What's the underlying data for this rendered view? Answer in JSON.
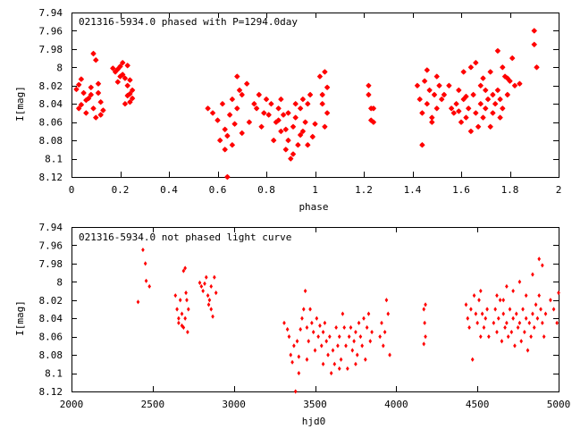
{
  "colors": {
    "points": "#ff0000",
    "axes": "#000000",
    "background": "#ffffff"
  },
  "chart_data": [
    {
      "type": "scatter",
      "title": "021316-5934.0 phased with P=1294.0day",
      "xlabel": "phase",
      "ylabel": "I[mag]",
      "xlim": [
        0,
        2
      ],
      "ylim": [
        8.12,
        7.94
      ],
      "y_inverted": true,
      "grid": false,
      "marker": "star",
      "xticks": [
        0,
        0.2,
        0.4,
        0.6,
        0.8,
        1,
        1.2,
        1.4,
        1.6,
        1.8,
        2
      ],
      "xtick_labels": [
        "0",
        "0.2",
        "0.4",
        "0.6",
        "0.8",
        "1",
        "1.2",
        "1.4",
        "1.6",
        "1.8",
        "2"
      ],
      "yticks": [
        7.94,
        7.96,
        7.98,
        8,
        8.02,
        8.04,
        8.06,
        8.08,
        8.1,
        8.12
      ],
      "ytick_labels": [
        "7.94",
        "7.96",
        "7.98",
        "8",
        "8.02",
        "8.04",
        "8.06",
        "8.08",
        "8.1",
        "8.12"
      ],
      "points": [
        [
          0.02,
          8.024
        ],
        [
          0.03,
          8.019
        ],
        [
          0.04,
          8.041
        ],
        [
          0.05,
          8.028
        ],
        [
          0.06,
          8.05
        ],
        [
          0.07,
          8.034
        ],
        [
          0.08,
          8.022
        ],
        [
          0.09,
          8.045
        ],
        [
          0.1,
          8.055
        ],
        [
          0.11,
          8.018
        ],
        [
          0.12,
          8.038
        ],
        [
          0.13,
          8.047
        ],
        [
          0.09,
          7.985
        ],
        [
          0.1,
          7.992
        ],
        [
          0.08,
          8.03
        ],
        [
          0.06,
          8.036
        ],
        [
          0.04,
          8.013
        ],
        [
          0.03,
          8.045
        ],
        [
          0.11,
          8.028
        ],
        [
          0.12,
          8.052
        ],
        [
          0.17,
          8.001
        ],
        [
          0.18,
          8.005
        ],
        [
          0.19,
          8.002
        ],
        [
          0.2,
          8.01
        ],
        [
          0.21,
          7.995
        ],
        [
          0.22,
          8.012
        ],
        [
          0.23,
          8.02
        ],
        [
          0.24,
          8.029
        ],
        [
          0.25,
          8.034
        ],
        [
          0.22,
          8.04
        ],
        [
          0.23,
          7.998
        ],
        [
          0.24,
          8.014
        ],
        [
          0.25,
          8.025
        ],
        [
          0.21,
          8.008
        ],
        [
          0.19,
          8.016
        ],
        [
          0.24,
          8.038
        ],
        [
          0.2,
          7.999
        ],
        [
          0.23,
          8.031
        ],
        [
          0.56,
          8.045
        ],
        [
          0.58,
          8.05
        ],
        [
          0.6,
          8.058
        ],
        [
          0.62,
          8.04
        ],
        [
          0.63,
          8.068
        ],
        [
          0.64,
          8.075
        ],
        [
          0.65,
          8.052
        ],
        [
          0.66,
          8.035
        ],
        [
          0.67,
          8.062
        ],
        [
          0.68,
          8.045
        ],
        [
          0.69,
          8.025
        ],
        [
          0.7,
          8.072
        ],
        [
          0.61,
          8.08
        ],
        [
          0.63,
          8.09
        ],
        [
          0.64,
          8.12
        ],
        [
          0.66,
          8.085
        ],
        [
          0.68,
          8.01
        ],
        [
          0.7,
          8.03
        ],
        [
          0.72,
          8.018
        ],
        [
          0.73,
          8.06
        ],
        [
          0.75,
          8.04
        ],
        [
          0.76,
          8.045
        ],
        [
          0.77,
          8.03
        ],
        [
          0.78,
          8.065
        ],
        [
          0.79,
          8.05
        ],
        [
          0.8,
          8.035
        ],
        [
          0.81,
          8.052
        ],
        [
          0.82,
          8.04
        ],
        [
          0.83,
          8.08
        ],
        [
          0.84,
          8.06
        ],
        [
          0.85,
          8.045
        ],
        [
          0.86,
          8.07
        ],
        [
          0.87,
          8.052
        ],
        [
          0.88,
          8.09
        ],
        [
          0.89,
          8.08
        ],
        [
          0.9,
          8.1
        ],
        [
          0.91,
          8.065
        ],
        [
          0.92,
          8.055
        ],
        [
          0.93,
          8.085
        ],
        [
          0.94,
          8.045
        ],
        [
          0.95,
          8.07
        ],
        [
          0.96,
          8.06
        ],
        [
          0.97,
          8.04
        ],
        [
          0.98,
          8.03
        ],
        [
          0.99,
          8.076
        ],
        [
          1.0,
          8.062
        ],
        [
          0.86,
          8.035
        ],
        [
          0.89,
          8.05
        ],
        [
          0.92,
          8.04
        ],
        [
          0.95,
          8.035
        ],
        [
          0.91,
          8.095
        ],
        [
          0.94,
          8.074
        ],
        [
          0.97,
          8.085
        ],
        [
          0.85,
          8.058
        ],
        [
          0.88,
          8.068
        ],
        [
          1.02,
          8.01
        ],
        [
          1.03,
          8.03
        ],
        [
          1.04,
          8.065
        ],
        [
          1.05,
          8.05
        ],
        [
          1.04,
          8.005
        ],
        [
          1.03,
          8.04
        ],
        [
          1.05,
          8.022
        ],
        [
          1.22,
          8.03
        ],
        [
          1.23,
          8.045
        ],
        [
          1.24,
          8.06
        ],
        [
          1.23,
          8.058
        ],
        [
          1.22,
          8.02
        ],
        [
          1.24,
          8.045
        ],
        [
          1.42,
          8.02
        ],
        [
          1.43,
          8.035
        ],
        [
          1.44,
          8.05
        ],
        [
          1.45,
          8.015
        ],
        [
          1.46,
          8.04
        ],
        [
          1.47,
          8.025
        ],
        [
          1.48,
          8.055
        ],
        [
          1.49,
          8.03
        ],
        [
          1.5,
          8.045
        ],
        [
          1.51,
          8.02
        ],
        [
          1.52,
          8.035
        ],
        [
          1.44,
          8.085
        ],
        [
          1.46,
          8.003
        ],
        [
          1.48,
          8.06
        ],
        [
          1.5,
          8.01
        ],
        [
          1.53,
          8.03
        ],
        [
          1.55,
          8.02
        ],
        [
          1.57,
          8.05
        ],
        [
          1.58,
          8.04
        ],
        [
          1.59,
          8.025
        ],
        [
          1.6,
          8.06
        ],
        [
          1.61,
          8.035
        ],
        [
          1.62,
          8.055
        ],
        [
          1.63,
          8.045
        ],
        [
          1.64,
          8.07
        ],
        [
          1.65,
          8.03
        ],
        [
          1.66,
          8.05
        ],
        [
          1.67,
          8.065
        ],
        [
          1.68,
          8.04
        ],
        [
          1.69,
          8.055
        ],
        [
          1.7,
          8.045
        ],
        [
          1.71,
          8.035
        ],
        [
          1.72,
          8.065
        ],
        [
          1.73,
          8.05
        ],
        [
          1.74,
          8.04
        ],
        [
          1.75,
          8.025
        ],
        [
          1.76,
          8.035
        ],
        [
          1.77,
          8.045
        ],
        [
          1.78,
          8.01
        ],
        [
          1.79,
          8.03
        ],
        [
          1.8,
          8.015
        ],
        [
          1.61,
          8.005
        ],
        [
          1.64,
          8.0
        ],
        [
          1.66,
          7.995
        ],
        [
          1.69,
          8.012
        ],
        [
          1.72,
          8.005
        ],
        [
          1.75,
          7.982
        ],
        [
          1.77,
          8.0
        ],
        [
          1.79,
          8.012
        ],
        [
          1.82,
          8.02
        ],
        [
          1.84,
          8.018
        ],
        [
          1.56,
          8.045
        ],
        [
          1.59,
          8.048
        ],
        [
          1.62,
          8.032
        ],
        [
          1.68,
          8.02
        ],
        [
          1.7,
          8.025
        ],
        [
          1.73,
          8.03
        ],
        [
          1.76,
          8.055
        ],
        [
          1.9,
          7.96
        ],
        [
          1.9,
          7.975
        ],
        [
          1.91,
          8.0
        ],
        [
          1.81,
          7.99
        ]
      ]
    },
    {
      "type": "scatter",
      "title": "021316-5934.0 not phased light curve",
      "xlabel": "hjd0",
      "ylabel": "I[mag]",
      "xlim": [
        2000,
        5000
      ],
      "ylim": [
        8.12,
        7.94
      ],
      "y_inverted": true,
      "grid": false,
      "marker": "diamond",
      "xticks": [
        2000,
        2500,
        3000,
        3500,
        4000,
        4500,
        5000
      ],
      "xtick_labels": [
        "2000",
        "2500",
        "3000",
        "3500",
        "4000",
        "4500",
        "5000"
      ],
      "yticks": [
        7.94,
        7.96,
        7.98,
        8,
        8.02,
        8.04,
        8.06,
        8.08,
        8.1,
        8.12
      ],
      "ytick_labels": [
        "7.94",
        "7.96",
        "7.98",
        "8",
        "8.02",
        "8.04",
        "8.06",
        "8.08",
        "8.1",
        "8.12"
      ],
      "points": [
        [
          2410,
          8.022
        ],
        [
          2440,
          7.965
        ],
        [
          2455,
          7.98
        ],
        [
          2460,
          7.999
        ],
        [
          2480,
          8.005
        ],
        [
          2640,
          8.015
        ],
        [
          2650,
          8.03
        ],
        [
          2660,
          8.045
        ],
        [
          2670,
          8.02
        ],
        [
          2680,
          8.035
        ],
        [
          2690,
          8.05
        ],
        [
          2700,
          8.04
        ],
        [
          2710,
          8.02
        ],
        [
          2715,
          8.055
        ],
        [
          2720,
          8.03
        ],
        [
          2690,
          7.988
        ],
        [
          2700,
          7.985
        ],
        [
          2660,
          8.04
        ],
        [
          2680,
          8.048
        ],
        [
          2705,
          8.012
        ],
        [
          2790,
          8.001
        ],
        [
          2800,
          8.005
        ],
        [
          2810,
          8.01
        ],
        [
          2820,
          8.002
        ],
        [
          2830,
          7.995
        ],
        [
          2840,
          8.015
        ],
        [
          2850,
          8.02
        ],
        [
          2860,
          8.03
        ],
        [
          2870,
          8.038
        ],
        [
          2880,
          7.995
        ],
        [
          2890,
          8.012
        ],
        [
          2860,
          8.005
        ],
        [
          2845,
          8.025
        ],
        [
          3310,
          8.045
        ],
        [
          3330,
          8.052
        ],
        [
          3340,
          8.06
        ],
        [
          3350,
          8.08
        ],
        [
          3360,
          8.088
        ],
        [
          3370,
          8.07
        ],
        [
          3380,
          8.12
        ],
        [
          3390,
          8.065
        ],
        [
          3400,
          8.082
        ],
        [
          3410,
          8.052
        ],
        [
          3420,
          8.04
        ],
        [
          3430,
          8.03
        ],
        [
          3440,
          8.01
        ],
        [
          3450,
          8.05
        ],
        [
          3460,
          8.065
        ],
        [
          3470,
          8.03
        ],
        [
          3480,
          8.045
        ],
        [
          3490,
          8.055
        ],
        [
          3500,
          8.075
        ],
        [
          3510,
          8.04
        ],
        [
          3520,
          8.06
        ],
        [
          3530,
          8.048
        ],
        [
          3540,
          8.07
        ],
        [
          3550,
          8.055
        ],
        [
          3560,
          8.045
        ],
        [
          3570,
          8.065
        ],
        [
          3580,
          8.08
        ],
        [
          3590,
          8.06
        ],
        [
          3600,
          8.1
        ],
        [
          3610,
          8.075
        ],
        [
          3620,
          8.09
        ],
        [
          3630,
          8.05
        ],
        [
          3640,
          8.07
        ],
        [
          3650,
          8.06
        ],
        [
          3660,
          8.085
        ],
        [
          3670,
          8.035
        ],
        [
          3680,
          8.05
        ],
        [
          3690,
          8.07
        ],
        [
          3700,
          8.095
        ],
        [
          3710,
          8.06
        ],
        [
          3720,
          8.05
        ],
        [
          3730,
          8.075
        ],
        [
          3740,
          8.065
        ],
        [
          3750,
          8.055
        ],
        [
          3760,
          8.08
        ],
        [
          3770,
          8.045
        ],
        [
          3780,
          8.06
        ],
        [
          3790,
          8.07
        ],
        [
          3800,
          8.04
        ],
        [
          3810,
          8.085
        ],
        [
          3820,
          8.05
        ],
        [
          3830,
          8.035
        ],
        [
          3840,
          8.065
        ],
        [
          3850,
          8.055
        ],
        [
          3900,
          8.06
        ],
        [
          3910,
          8.045
        ],
        [
          3920,
          8.07
        ],
        [
          3930,
          8.055
        ],
        [
          3940,
          8.02
        ],
        [
          3950,
          8.035
        ],
        [
          3960,
          8.08
        ],
        [
          3400,
          8.1
        ],
        [
          3450,
          8.085
        ],
        [
          3550,
          8.09
        ],
        [
          3650,
          8.095
        ],
        [
          3750,
          8.09
        ],
        [
          4170,
          8.03
        ],
        [
          4175,
          8.045
        ],
        [
          4180,
          8.06
        ],
        [
          4170,
          8.068
        ],
        [
          4180,
          8.025
        ],
        [
          4430,
          8.025
        ],
        [
          4440,
          8.04
        ],
        [
          4450,
          8.05
        ],
        [
          4460,
          8.03
        ],
        [
          4470,
          8.085
        ],
        [
          4480,
          8.015
        ],
        [
          4490,
          8.035
        ],
        [
          4500,
          8.045
        ],
        [
          4510,
          8.02
        ],
        [
          4520,
          8.06
        ],
        [
          4530,
          8.035
        ],
        [
          4540,
          8.05
        ],
        [
          4550,
          8.04
        ],
        [
          4560,
          8.03
        ],
        [
          4570,
          8.06
        ],
        [
          4600,
          8.045
        ],
        [
          4610,
          8.03
        ],
        [
          4620,
          8.055
        ],
        [
          4630,
          8.04
        ],
        [
          4640,
          8.02
        ],
        [
          4650,
          8.065
        ],
        [
          4660,
          8.035
        ],
        [
          4670,
          8.05
        ],
        [
          4680,
          8.045
        ],
        [
          4690,
          8.06
        ],
        [
          4700,
          8.03
        ],
        [
          4710,
          8.055
        ],
        [
          4720,
          8.04
        ],
        [
          4730,
          8.07
        ],
        [
          4740,
          8.035
        ],
        [
          4750,
          8.05
        ],
        [
          4760,
          8.045
        ],
        [
          4770,
          8.065
        ],
        [
          4780,
          8.03
        ],
        [
          4790,
          8.055
        ],
        [
          4800,
          8.04
        ],
        [
          4810,
          8.075
        ],
        [
          4820,
          8.045
        ],
        [
          4830,
          8.06
        ],
        [
          4840,
          8.035
        ],
        [
          4850,
          8.05
        ],
        [
          4860,
          8.025
        ],
        [
          4870,
          8.04
        ],
        [
          4880,
          8.015
        ],
        [
          4890,
          8.03
        ],
        [
          4900,
          8.045
        ],
        [
          4910,
          8.06
        ],
        [
          4680,
          8.005
        ],
        [
          4720,
          8.01
        ],
        [
          4760,
          8.0
        ],
        [
          4800,
          8.015
        ],
        [
          4840,
          7.992
        ],
        [
          4880,
          7.975
        ],
        [
          4900,
          7.982
        ],
        [
          4620,
          8.015
        ],
        [
          4660,
          8.02
        ],
        [
          4520,
          8.01
        ],
        [
          4920,
          8.035
        ],
        [
          4950,
          8.02
        ],
        [
          4970,
          8.03
        ],
        [
          4990,
          8.045
        ],
        [
          5000,
          8.012
        ]
      ]
    }
  ]
}
